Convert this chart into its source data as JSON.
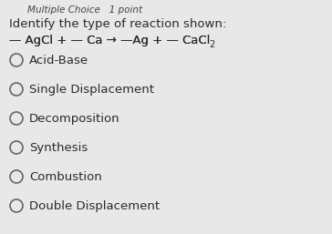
{
  "background_color": "#e8e8e8",
  "header_text": "Multiple Choice   1 point",
  "question_text": "Identify the type of reaction shown:",
  "eq_main": "— AgCl + — Ca → —Ag + — CaCl",
  "eq_sub": "2",
  "choices": [
    "Acid-Base",
    "Single Displacement",
    "Decomposition",
    "Synthesis",
    "Combustion",
    "Double Displacement"
  ],
  "header_fontsize": 7.5,
  "question_fontsize": 9.5,
  "equation_fontsize": 9.5,
  "choice_fontsize": 9.5,
  "text_color": "#2a2a2a",
  "header_color": "#444444",
  "circle_color": "#666666"
}
